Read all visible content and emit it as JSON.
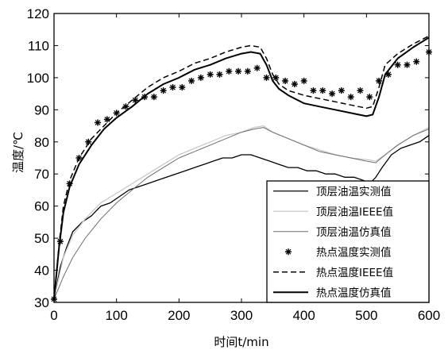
{
  "chart_data": {
    "type": "line",
    "xlabel": "时间t/min",
    "ylabel": "温度/℃",
    "xlim": [
      0,
      600
    ],
    "ylim": [
      30,
      120
    ],
    "xticks": [
      "0",
      "100",
      "200",
      "300",
      "400",
      "500",
      "600"
    ],
    "yticks": [
      "30",
      "40",
      "50",
      "60",
      "70",
      "80",
      "90",
      "100",
      "110",
      "120"
    ],
    "grid": false,
    "legend_position": "bottom-right",
    "series": [
      {
        "name": "顶层油温实测值",
        "style": "solid-thin",
        "color": "#000000",
        "x": [
          0,
          10,
          20,
          30,
          45,
          60,
          75,
          90,
          105,
          120,
          135,
          150,
          165,
          180,
          195,
          210,
          225,
          240,
          255,
          270,
          285,
          300,
          315,
          330,
          345,
          360,
          375,
          390,
          405,
          420,
          435,
          450,
          465,
          480,
          495,
          505,
          515,
          525,
          540,
          555,
          570,
          585,
          600
        ],
        "y": [
          31,
          41,
          47,
          52,
          55,
          57,
          60,
          61,
          63,
          65,
          66,
          67,
          68,
          69,
          70,
          71,
          72,
          73,
          74,
          75,
          75,
          76,
          76,
          75,
          74,
          73,
          72,
          72,
          71,
          71,
          70,
          70,
          69,
          69,
          68,
          67,
          69,
          72,
          76,
          78,
          79,
          80,
          82
        ]
      },
      {
        "name": "顶层油温IEEE值",
        "style": "solid-light",
        "color": "#c8c8c8",
        "x": [
          0,
          15,
          30,
          50,
          75,
          100,
          125,
          150,
          175,
          200,
          225,
          250,
          275,
          300,
          320,
          335,
          350,
          375,
          400,
          425,
          450,
          475,
          500,
          515,
          530,
          550,
          575,
          600
        ],
        "y": [
          31,
          44,
          51,
          56,
          61,
          64,
          67,
          70,
          73,
          76,
          78,
          80,
          82,
          83,
          84.5,
          85,
          83,
          81,
          79,
          77.5,
          76,
          75,
          74.5,
          74,
          76,
          79,
          82,
          84.5
        ]
      },
      {
        "name": "顶层油温仿真值",
        "style": "solid-gray",
        "color": "#6e6e6e",
        "x": [
          0,
          15,
          30,
          50,
          75,
          100,
          125,
          150,
          175,
          200,
          225,
          250,
          275,
          300,
          320,
          335,
          350,
          375,
          400,
          425,
          450,
          475,
          500,
          515,
          530,
          550,
          575,
          600
        ],
        "y": [
          31,
          38,
          44,
          50,
          56,
          61,
          65,
          69,
          72,
          75,
          77,
          79,
          81,
          83,
          84,
          84.5,
          83,
          81,
          79,
          77,
          76,
          75,
          74,
          73.5,
          76,
          79,
          82,
          84
        ]
      },
      {
        "name": "热点温度实测值",
        "style": "markers",
        "color": "#000000",
        "x": [
          0,
          10,
          25,
          40,
          55,
          70,
          85,
          100,
          115,
          130,
          145,
          160,
          175,
          190,
          205,
          220,
          235,
          250,
          265,
          280,
          295,
          310,
          325,
          340,
          355,
          370,
          385,
          400,
          415,
          430,
          445,
          460,
          475,
          490,
          505,
          520,
          535,
          550,
          565,
          580,
          600
        ],
        "y": [
          31,
          49,
          67,
          75,
          80,
          86,
          87,
          89,
          91,
          93,
          94,
          94,
          96,
          97,
          97,
          99,
          100,
          101,
          101,
          102,
          102,
          102,
          103,
          100,
          100,
          99,
          98,
          99,
          96,
          96,
          95,
          96,
          94,
          96,
          94,
          99,
          101,
          104,
          104,
          105,
          108
        ]
      },
      {
        "name": "热点温度IEEE值",
        "style": "dashed",
        "color": "#000000",
        "x": [
          0,
          8,
          15,
          25,
          40,
          60,
          80,
          100,
          125,
          150,
          175,
          200,
          225,
          250,
          275,
          300,
          315,
          330,
          340,
          350,
          360,
          375,
          400,
          425,
          450,
          475,
          500,
          510,
          520,
          530,
          550,
          575,
          600
        ],
        "y": [
          31,
          48,
          60,
          68,
          75,
          81,
          85,
          89,
          93,
          97,
          100,
          102,
          104.5,
          106,
          108,
          109.5,
          110,
          109.5,
          106,
          101,
          98,
          96,
          94.5,
          93.5,
          92.5,
          91.5,
          90.5,
          91,
          97,
          104,
          107.5,
          110.5,
          113
        ]
      },
      {
        "name": "热点温度仿真值",
        "style": "solid-thick",
        "color": "#000000",
        "x": [
          0,
          8,
          15,
          25,
          40,
          60,
          80,
          100,
          125,
          150,
          175,
          200,
          225,
          250,
          275,
          300,
          315,
          330,
          340,
          350,
          360,
          375,
          400,
          425,
          450,
          475,
          500,
          510,
          520,
          530,
          550,
          575,
          600
        ],
        "y": [
          31,
          47,
          58,
          66,
          73,
          79,
          84,
          87.5,
          91,
          95,
          98,
          100,
          102.5,
          104,
          106,
          107.5,
          108,
          107.5,
          104,
          99,
          96.5,
          94.5,
          92,
          91,
          90,
          89,
          88,
          88.5,
          94,
          101,
          106,
          109.5,
          112.5
        ]
      }
    ]
  }
}
